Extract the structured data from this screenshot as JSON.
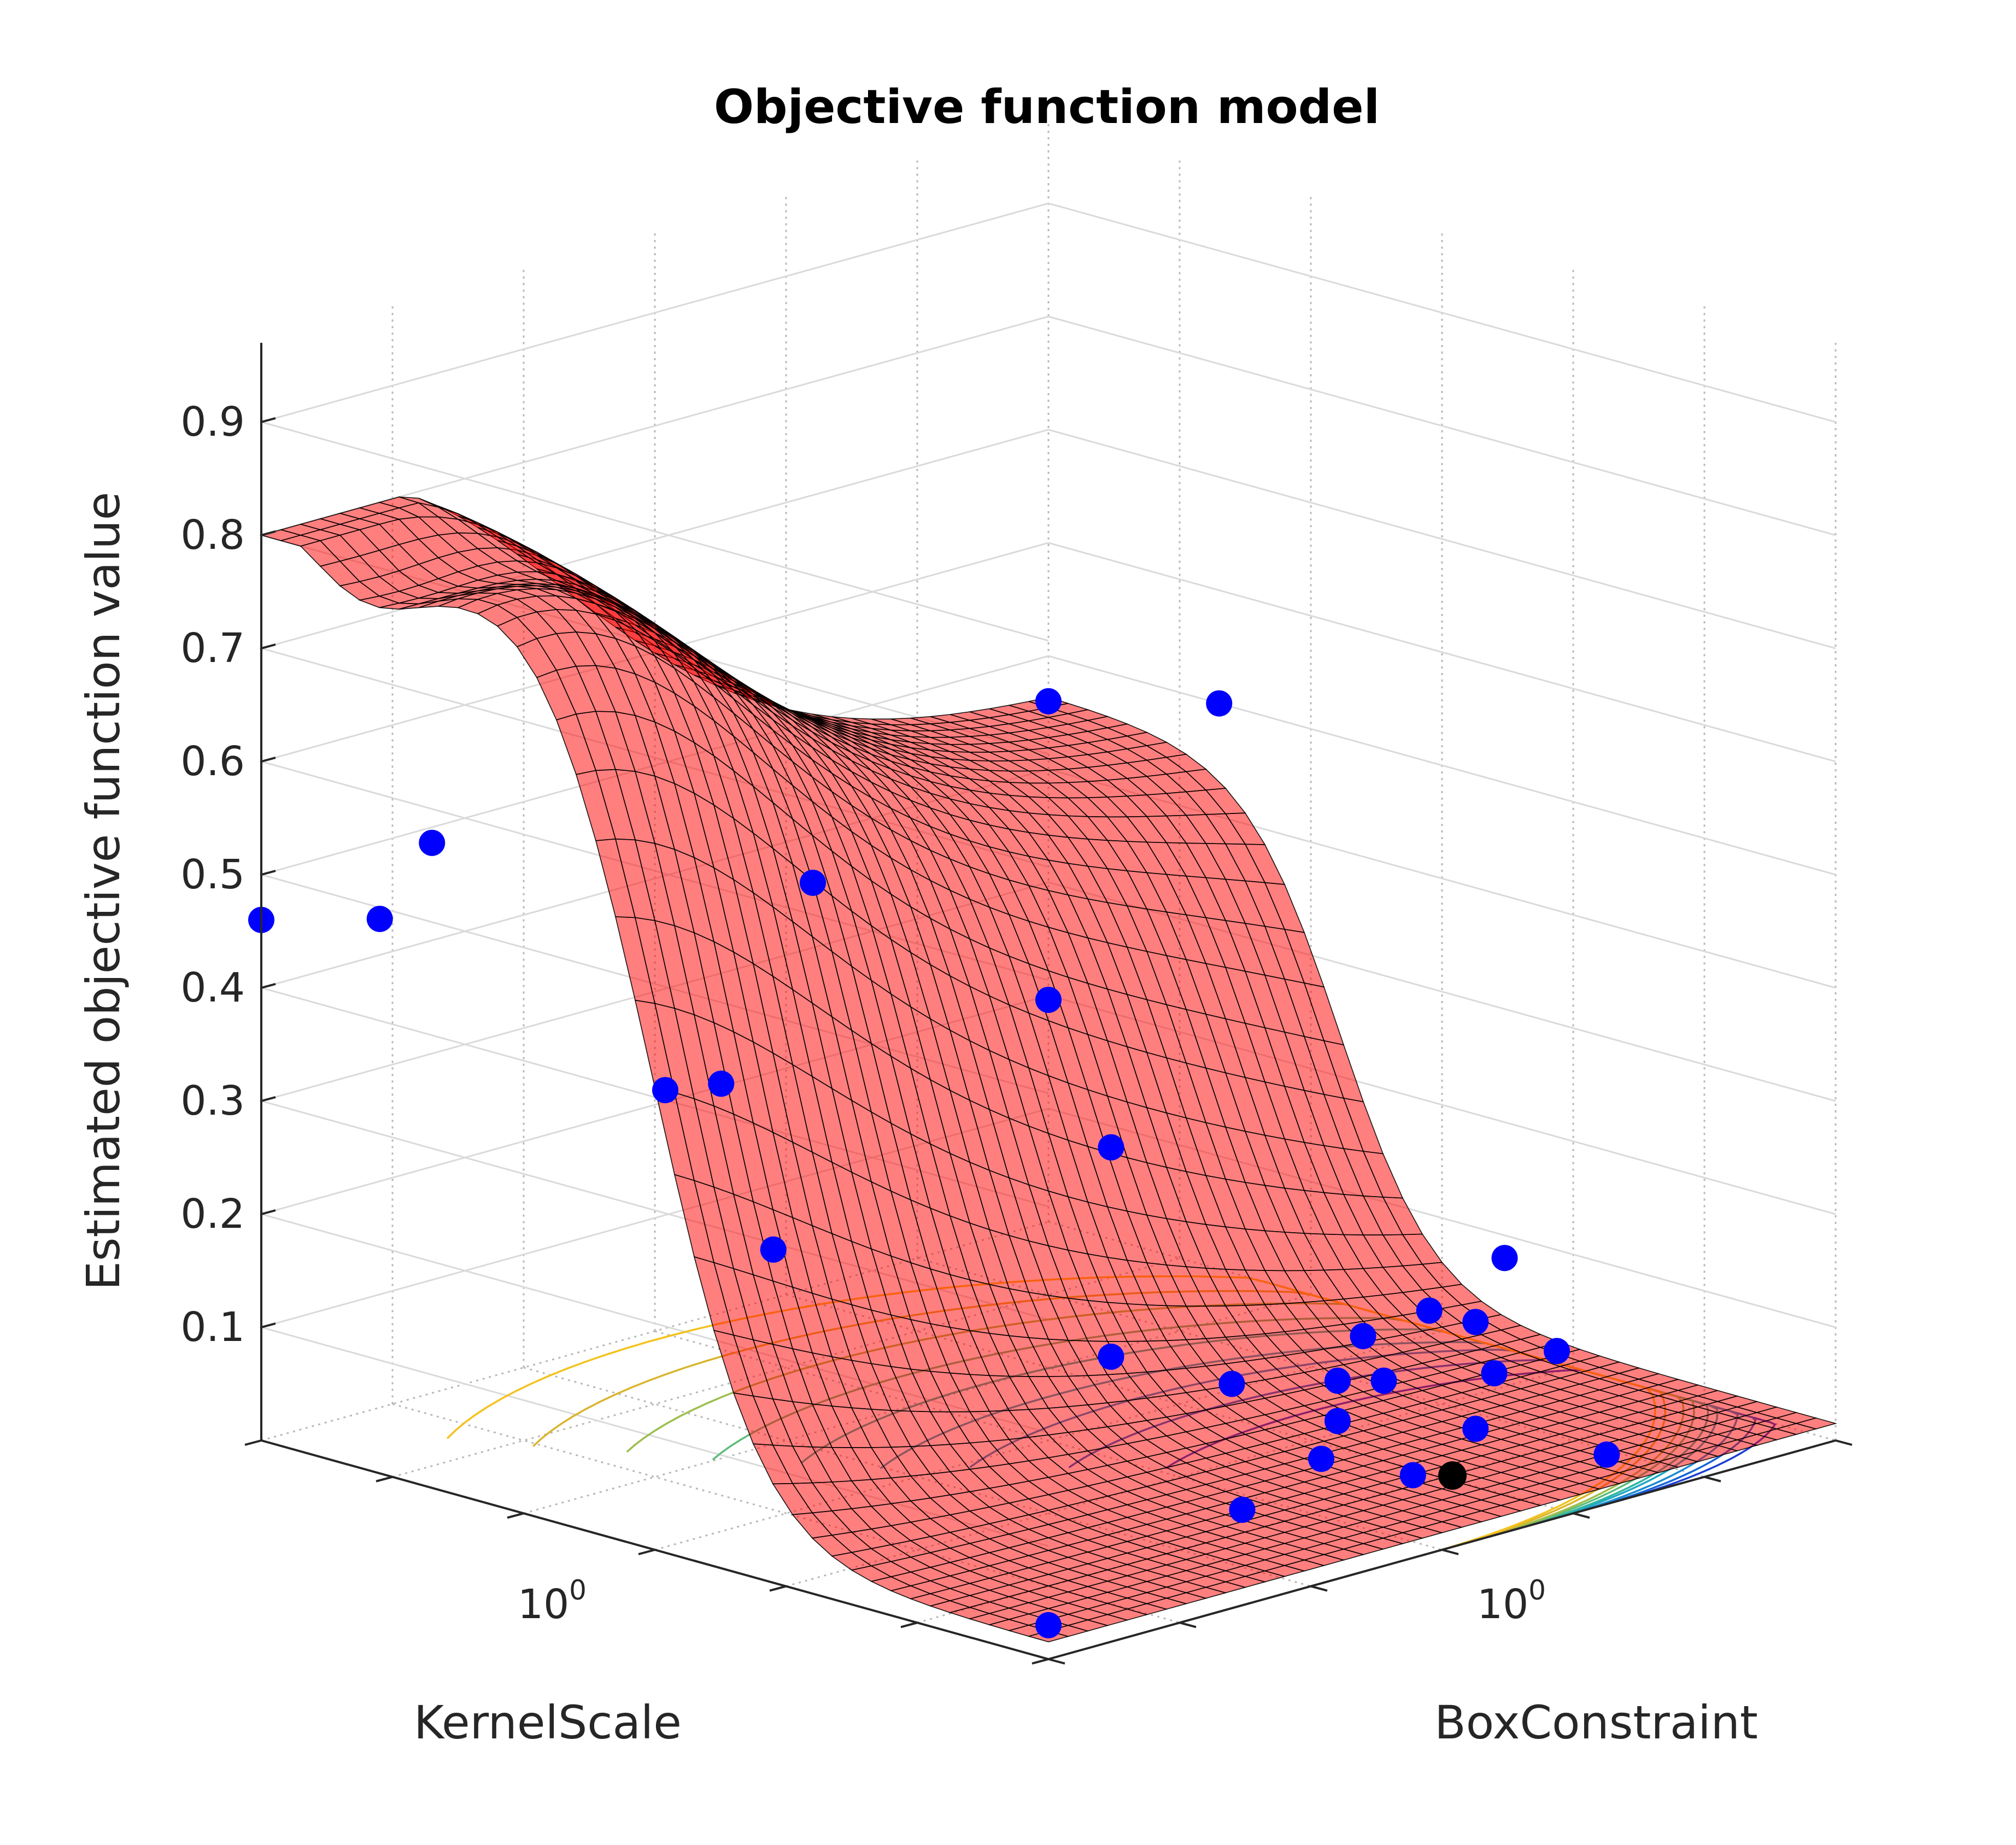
{
  "chart_data": {
    "type": "surface",
    "title": "Objective function model",
    "xlabel": "KernelScale",
    "ylabel": "BoxConstraint",
    "zlabel": "Estimated objective function value",
    "x_scale": "log",
    "y_scale": "log",
    "xlim": [
      0.001,
      1000
    ],
    "ylim": [
      0.001,
      1000
    ],
    "zlim": [
      0,
      0.97
    ],
    "z_ticks": [
      "0.1",
      "0.2",
      "0.3",
      "0.4",
      "0.5",
      "0.6",
      "0.7",
      "0.8",
      "0.9"
    ],
    "x_tick_label": {
      "base": "10",
      "exp": "0"
    },
    "y_tick_label": {
      "base": "10",
      "exp": "0"
    },
    "grid": true,
    "surface_color": "#ff0000",
    "edge_color": "#000000",
    "point_color": "#0000ff",
    "best_point_color": "#000000",
    "contour_colors": [
      "#1a3fd1",
      "#1464d8",
      "#1a8bcf",
      "#1fa7c0",
      "#2db5a3",
      "#5ebc7a",
      "#9cbe4e",
      "#d9b52c",
      "#f4c21c"
    ],
    "observed_points": [
      {
        "x": 0.001,
        "y": 0.001,
        "z": 0.46
      },
      {
        "x": 0.001,
        "y": 1000,
        "z": 0.46
      },
      {
        "x": 0.008,
        "y": 0.001,
        "z": 0.49
      },
      {
        "x": 0.02,
        "y": 0.001,
        "z": 0.57
      },
      {
        "x": 0.02,
        "y": 1000,
        "z": 0.5
      },
      {
        "x": 0.08,
        "y": 0.2,
        "z": 0.48
      },
      {
        "x": 0.3,
        "y": 10,
        "z": 0.21
      },
      {
        "x": 0.3,
        "y": 0.004,
        "z": 0.37
      },
      {
        "x": 0.4,
        "y": 0.008,
        "z": 0.37
      },
      {
        "x": 0.8,
        "y": 0.01,
        "z": 0.23
      },
      {
        "x": 0.5,
        "y": 2,
        "z": 0.37
      },
      {
        "x": 1.5,
        "y": 2,
        "z": 0.07
      },
      {
        "x": 3,
        "y": 1000,
        "z": 0.08
      },
      {
        "x": 4,
        "y": 200,
        "z": 0.06
      },
      {
        "x": 5,
        "y": 50,
        "z": 0.06
      },
      {
        "x": 5,
        "y": 5,
        "z": 0.05
      },
      {
        "x": 6,
        "y": 300,
        "z": 0.05
      },
      {
        "x": 8,
        "y": 20,
        "z": 0.04
      },
      {
        "x": 12,
        "y": 30,
        "z": 0.04
      },
      {
        "x": 15,
        "y": 500,
        "z": 0.03
      },
      {
        "x": 20,
        "y": 8,
        "z": 0.03
      },
      {
        "x": 25,
        "y": 100,
        "z": 0.04
      },
      {
        "x": 40,
        "y": 3,
        "z": 0.02
      },
      {
        "x": 60,
        "y": 30,
        "z": 0.02
      },
      {
        "x": 100,
        "y": 0.3,
        "z": 0.02
      },
      {
        "x": 150,
        "y": 4,
        "z": 0.02
      },
      {
        "x": 300,
        "y": 60,
        "z": 0.01
      },
      {
        "x": 1000,
        "y": 0.001,
        "z": 0.03
      }
    ],
    "best_point": {
      "x": 150,
      "y": 8,
      "z": 0.01
    }
  }
}
